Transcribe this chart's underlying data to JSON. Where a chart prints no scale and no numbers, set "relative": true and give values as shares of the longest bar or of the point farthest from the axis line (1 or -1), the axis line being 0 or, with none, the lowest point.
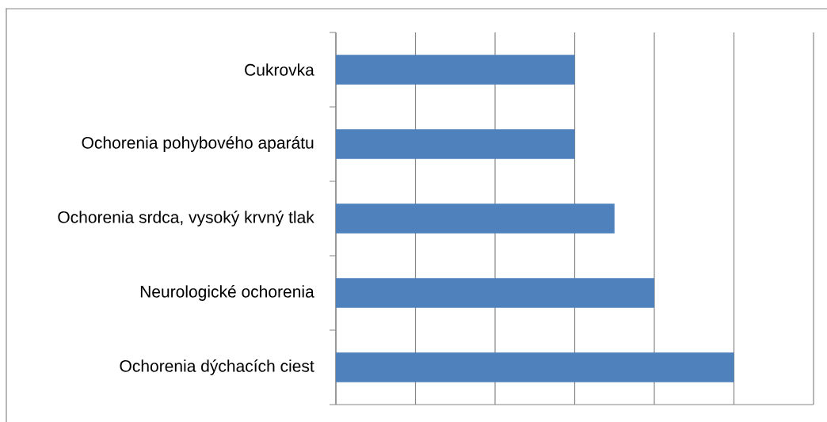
{
  "chart_data": {
    "type": "bar",
    "orientation": "horizontal",
    "relative": true,
    "categories": [
      "Cukrovka",
      "Ochorenia pohybového aparátu",
      "Ochorenia srdca, vysoký krvný tlak",
      "Neurologické ochorenia",
      "Ochorenia dýchacích ciest"
    ],
    "values": [
      0.6,
      0.6,
      0.7,
      0.8,
      1.0
    ],
    "color": "#4f81bd",
    "grid": "x"
  }
}
